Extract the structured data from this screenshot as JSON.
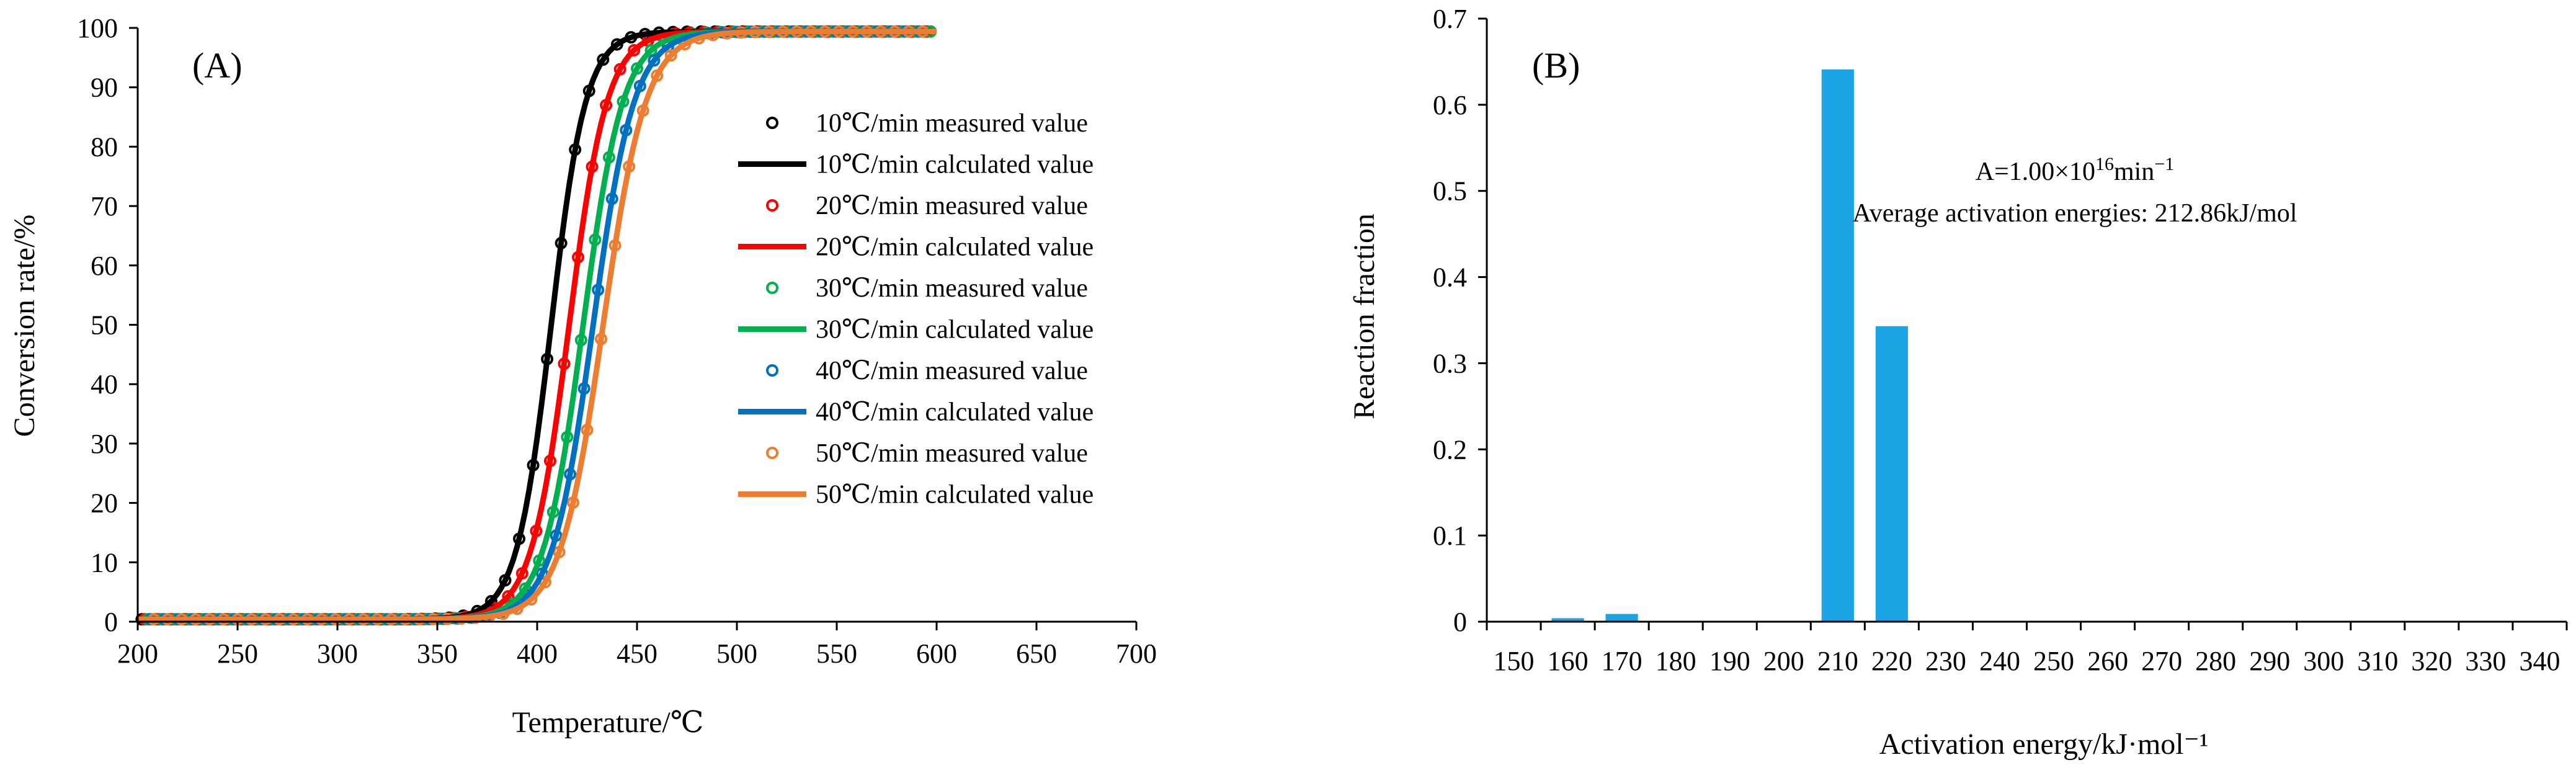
{
  "chart_data": [
    {
      "panel": "(A)",
      "type": "line",
      "xlabel": "Temperature/℃",
      "ylabel": "Conversion rate/%",
      "xlim": [
        200,
        700
      ],
      "ylim": [
        0,
        100
      ],
      "x_ticks": [
        "200",
        "250",
        "300",
        "350",
        "400",
        "450",
        "500",
        "550",
        "600",
        "650",
        "700"
      ],
      "y_ticks": [
        "0",
        "10",
        "20",
        "30",
        "40",
        "50",
        "60",
        "70",
        "80",
        "90",
        "100"
      ],
      "series": [
        {
          "rate": "10℃/min",
          "color": "#000000",
          "t50": 407,
          "k": 0.115,
          "measured_label": "10℃/min  measured value",
          "calculated_label": "10℃/min  calculated value"
        },
        {
          "rate": "20℃/min",
          "color": "#ff0000",
          "t50": 416,
          "k": 0.105,
          "measured_label": "20℃/min  measured value",
          "calculated_label": "20℃/min  calculated value"
        },
        {
          "rate": "30℃/min",
          "color": "#00b050",
          "t50": 423,
          "k": 0.1,
          "measured_label": "30℃/min  measured value",
          "calculated_label": "30℃/min  calculated value"
        },
        {
          "rate": "40℃/min",
          "color": "#0070c0",
          "t50": 428,
          "k": 0.097,
          "measured_label": "40℃/min  measured value",
          "calculated_label": "40℃/min  calculated value"
        },
        {
          "rate": "50℃/min",
          "color": "#ed7d31",
          "t50": 433,
          "k": 0.093,
          "measured_label": "50℃/min  measured value",
          "calculated_label": "50℃/min  calculated value"
        }
      ]
    },
    {
      "panel": "(B)",
      "type": "bar",
      "xlabel": "Activation energy/kJ·mol⁻¹",
      "ylabel": "Reaction fraction",
      "ylim": [
        0,
        0.7
      ],
      "y_ticks": [
        "0",
        "0.1",
        "0.2",
        "0.3",
        "0.4",
        "0.5",
        "0.6",
        "0.7"
      ],
      "categories": [
        "150",
        "160",
        "170",
        "180",
        "190",
        "200",
        "210",
        "220",
        "230",
        "240",
        "250",
        "260",
        "270",
        "280",
        "290",
        "300",
        "310",
        "320",
        "330",
        "340"
      ],
      "values": [
        0.001,
        0.004,
        0.009,
        0.001,
        0.001,
        0.001,
        0.641,
        0.343,
        0.001,
        0.001,
        0.001,
        0.001,
        0.001,
        0.001,
        0.001,
        0.001,
        0.001,
        0.001,
        0.001,
        0.001
      ],
      "bar_color": "#1ca4e4",
      "annotation": {
        "line1_prefix": "A=1.00×10",
        "line1_exp": "16",
        "line1_unit": "min",
        "line1_unit_exp": "−1",
        "line2": "Average activation energies: 212.86kJ/mol"
      }
    }
  ]
}
